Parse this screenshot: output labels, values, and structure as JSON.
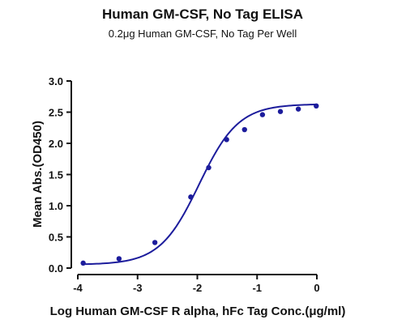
{
  "chart_data": {
    "type": "scatter",
    "title": "Human GM-CSF, No Tag ELISA",
    "subtitle": "0.2μg Human GM-CSF, No Tag Per Well",
    "xlabel": "Log Human GM-CSF R alpha, hFc Tag Conc.(μg/ml)",
    "ylabel": "Mean Abs.(OD450)",
    "xlim": [
      -4,
      0
    ],
    "ylim": [
      0,
      3.0
    ],
    "x_ticks": [
      "-4",
      "-3",
      "-2",
      "-1",
      "0"
    ],
    "y_ticks": [
      "0.0",
      "0.5",
      "1.0",
      "1.5",
      "2.0",
      "2.5",
      "3.0"
    ],
    "grid": false,
    "series": [
      {
        "points": [
          {
            "x": -3.91,
            "y": 0.08
          },
          {
            "x": -3.31,
            "y": 0.15
          },
          {
            "x": -2.71,
            "y": 0.41
          },
          {
            "x": -2.11,
            "y": 1.14
          },
          {
            "x": -1.81,
            "y": 1.61
          },
          {
            "x": -1.51,
            "y": 2.06
          },
          {
            "x": -1.21,
            "y": 2.22
          },
          {
            "x": -0.91,
            "y": 2.46
          },
          {
            "x": -0.61,
            "y": 2.51
          },
          {
            "x": -0.31,
            "y": 2.55
          },
          {
            "x": -0.01,
            "y": 2.6
          }
        ],
        "fit_curve": "4PL",
        "color": "#1c1c9c"
      }
    ]
  }
}
